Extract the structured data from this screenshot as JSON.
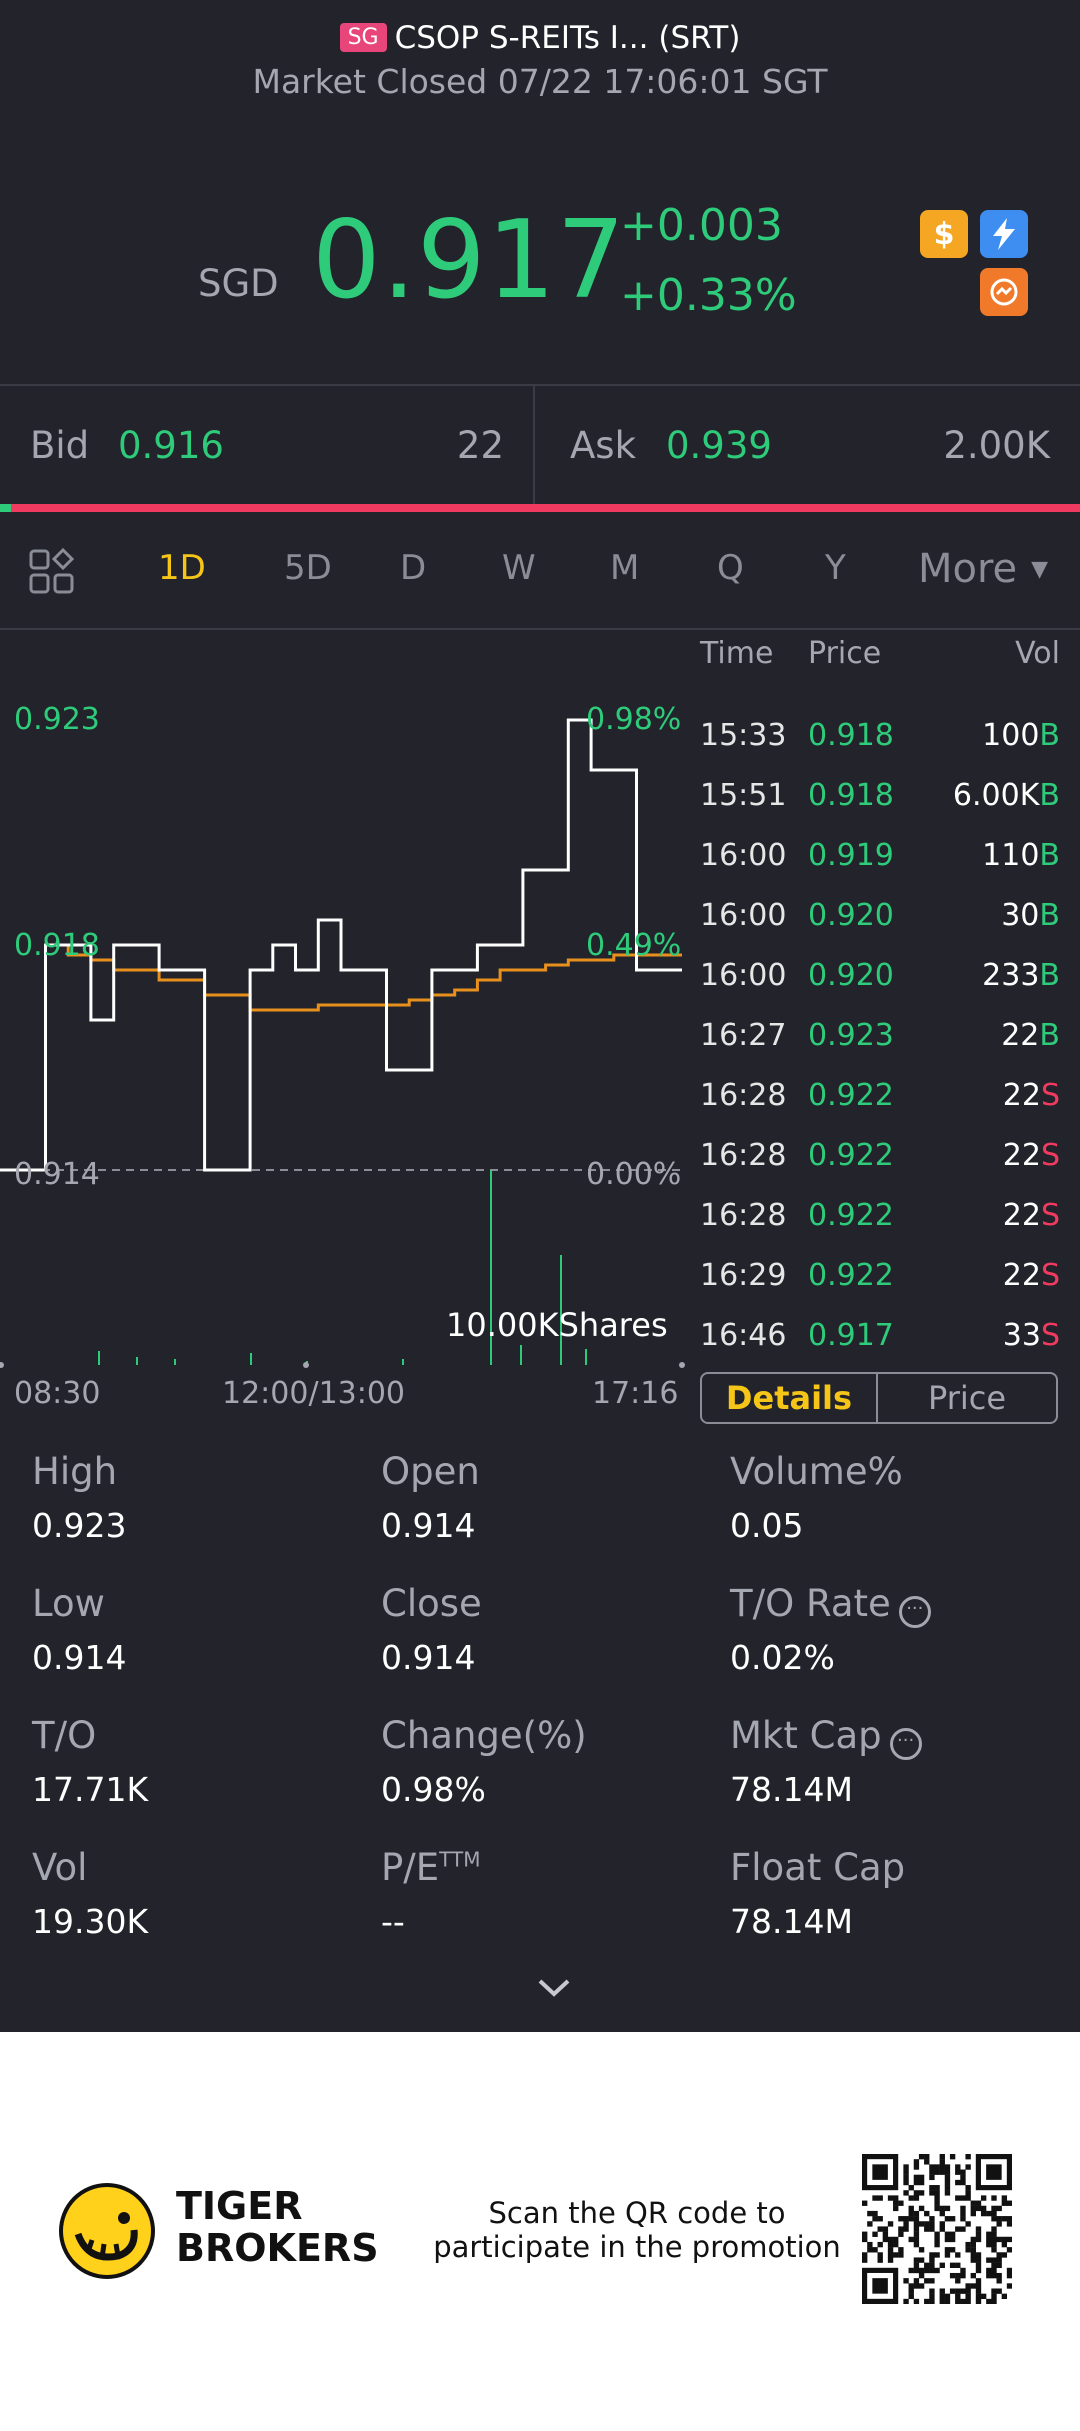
{
  "header": {
    "region_badge": "SG",
    "title": "CSOP S-REITs I... (SRT)",
    "status": "Market Closed 07/22 17:06:01 SGT"
  },
  "quote": {
    "currency": "SGD",
    "price": "0.917",
    "change": "+0.003",
    "change_pct": "+0.33%",
    "icons": [
      "dollar-icon",
      "flash-icon",
      "swap-icon"
    ]
  },
  "bid_ask": {
    "bid_label": "Bid",
    "bid_price": "0.916",
    "bid_size": "22",
    "ask_label": "Ask",
    "ask_price": "0.939",
    "ask_size": "2.00K",
    "bid_share": 0.01
  },
  "tabs": {
    "items": [
      "1D",
      "5D",
      "D",
      "W",
      "M",
      "Q",
      "Y"
    ],
    "active": "1D",
    "more": "More"
  },
  "chart_data": {
    "type": "line",
    "y_labels_left": [
      "0.923",
      "0.918",
      "0.914"
    ],
    "y_labels_right": [
      "0.98%",
      "0.49%",
      "0.00%"
    ],
    "x_labels": [
      "08:30",
      "12:00/13:00",
      "17:16"
    ],
    "volume_label": "10.00KShares",
    "prev_close": 0.914,
    "ylim": [
      0.914,
      0.923
    ],
    "series": [
      {
        "values": [
          0.914,
          0.914,
          0.9185,
          0.9185,
          0.917,
          0.9185,
          0.9185,
          0.918,
          0.918,
          0.914,
          0.914,
          0.918,
          0.9185,
          0.918,
          0.919,
          0.918,
          0.918,
          0.916,
          0.916,
          0.918,
          0.918,
          0.9185,
          0.9185,
          0.92,
          0.92,
          0.923,
          0.922,
          0.922,
          0.918,
          0.918
        ]
      },
      {
        "values": [
          0.914,
          0.914,
          0.9185,
          0.9183,
          0.9182,
          0.918,
          0.918,
          0.9178,
          0.9178,
          0.9175,
          0.9175,
          0.9172,
          0.9172,
          0.9172,
          0.9173,
          0.9173,
          0.9173,
          0.9173,
          0.9174,
          0.9175,
          0.9176,
          0.9178,
          0.918,
          0.918,
          0.9181,
          0.9182,
          0.9182,
          0.9183,
          0.9183,
          0.9183
        ]
      }
    ]
  },
  "trades": {
    "headers": [
      "Time",
      "Price",
      "Vol"
    ],
    "rows": [
      {
        "time": "15:33",
        "price": "0.918",
        "vol": "100",
        "side": "B"
      },
      {
        "time": "15:51",
        "price": "0.918",
        "vol": "6.00K",
        "side": "B"
      },
      {
        "time": "16:00",
        "price": "0.919",
        "vol": "110",
        "side": "B"
      },
      {
        "time": "16:00",
        "price": "0.920",
        "vol": "30",
        "side": "B"
      },
      {
        "time": "16:00",
        "price": "0.920",
        "vol": "233",
        "side": "B"
      },
      {
        "time": "16:27",
        "price": "0.923",
        "vol": "22",
        "side": "B"
      },
      {
        "time": "16:28",
        "price": "0.922",
        "vol": "22",
        "side": "S"
      },
      {
        "time": "16:28",
        "price": "0.922",
        "vol": "22",
        "side": "S"
      },
      {
        "time": "16:28",
        "price": "0.922",
        "vol": "22",
        "side": "S"
      },
      {
        "time": "16:29",
        "price": "0.922",
        "vol": "22",
        "side": "S"
      },
      {
        "time": "16:46",
        "price": "0.917",
        "vol": "33",
        "side": "S"
      }
    ],
    "details_label": "Details",
    "price_label": "Price"
  },
  "stats": {
    "high_label": "High",
    "high": "0.923",
    "open_label": "Open",
    "open": "0.914",
    "volume_pct_label": "Volume%",
    "volume_pct": "0.05",
    "low_label": "Low",
    "low": "0.914",
    "close_label": "Close",
    "close": "0.914",
    "to_rate_label": "T/O Rate",
    "to_rate": "0.02%",
    "to_label": "T/O",
    "to": "17.71K",
    "change_label": "Change(%)",
    "change": "0.98%",
    "mkt_cap_label": "Mkt Cap",
    "mkt_cap": "78.14M",
    "vol_label": "Vol",
    "vol": "19.30K",
    "pe_label": "P/E",
    "pe_sup": "TTM",
    "pe": "--",
    "float_cap_label": "Float Cap",
    "float_cap": "78.14M"
  },
  "footer": {
    "brand_line1": "TIGER",
    "brand_line2": "BROKERS",
    "promo_line1": "Scan the QR code to",
    "promo_line2": "participate in the promotion"
  }
}
